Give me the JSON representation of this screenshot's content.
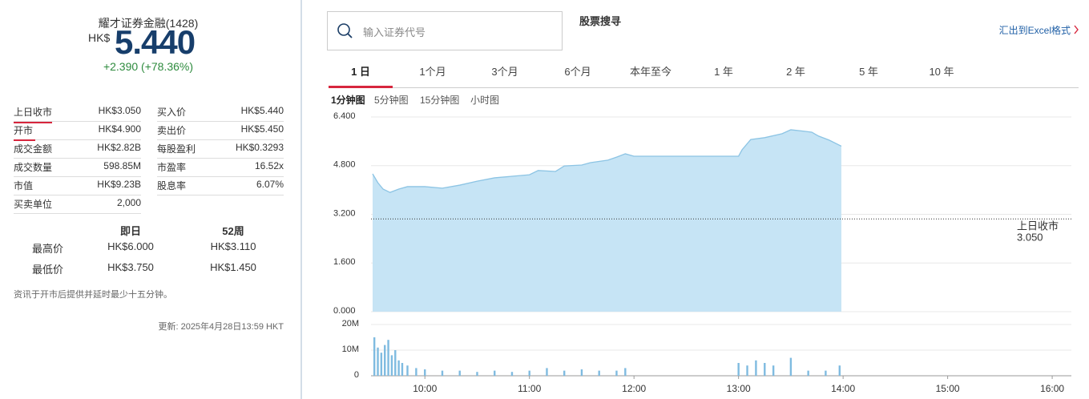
{
  "quote": {
    "name": "耀才证券金融(1428)",
    "currency": "HK$",
    "price": "5.440",
    "change": "+2.390 (+78.36%)"
  },
  "stats": [
    [
      "上日收市",
      "HK$3.050",
      "买入价",
      "HK$5.440"
    ],
    [
      "开市",
      "HK$4.900",
      "卖出价",
      "HK$5.450"
    ],
    [
      "成交金额",
      "HK$2.82B",
      "每股盈利",
      "HK$0.3293"
    ],
    [
      "成交数量",
      "598.85M",
      "市盈率",
      "16.52x"
    ],
    [
      "市值",
      "HK$9.23B",
      "股息率",
      "6.07%"
    ],
    [
      "买卖单位",
      "2,000"
    ]
  ],
  "range": {
    "headers": [
      "即日",
      "52周"
    ],
    "rows": [
      [
        "最高价",
        "HK$6.000",
        "HK$3.110"
      ],
      [
        "最低价",
        "HK$3.750",
        "HK$1.450"
      ]
    ]
  },
  "note": "资讯于开市后提供并延时最少十五分钟。",
  "updated": "更新: 2025年4月28日13:59 HKT",
  "search": {
    "placeholder": "输入证券代号",
    "title": "股票搜寻"
  },
  "export": "汇出到Excel格式",
  "tabs": [
    "1 日",
    "1个月",
    "3个月",
    "6个月",
    "本年至今",
    "1 年",
    "2 年",
    "5 年",
    "10 年"
  ],
  "subtabs": [
    "1分钟图",
    "5分钟图",
    "15分钟图",
    "小时图"
  ],
  "chart": {
    "type": "area",
    "x": [
      "09:30",
      "09:33",
      "09:36",
      "09:40",
      "09:45",
      "09:50",
      "10:00",
      "10:10",
      "10:20",
      "10:30",
      "10:40",
      "10:50",
      "11:00",
      "11:05",
      "11:15",
      "11:20",
      "11:30",
      "11:35",
      "11:45",
      "11:50",
      "11:55",
      "12:00",
      "13:00",
      "13:02",
      "13:07",
      "13:15",
      "13:25",
      "13:30",
      "13:38",
      "13:42",
      "13:46",
      "13:52",
      "13:59"
    ],
    "values": [
      4.53,
      4.24,
      4.03,
      3.92,
      4.03,
      4.11,
      4.11,
      4.06,
      4.16,
      4.29,
      4.4,
      4.45,
      4.5,
      4.64,
      4.61,
      4.79,
      4.82,
      4.9,
      4.98,
      5.08,
      5.19,
      5.11,
      5.11,
      5.32,
      5.66,
      5.72,
      5.85,
      5.98,
      5.93,
      5.9,
      5.77,
      5.64,
      5.44
    ],
    "color": "#c6e4f5",
    "line_color": "#8cc4e4",
    "ylim": [
      0,
      6.4
    ],
    "yticks": [
      {
        "value": 0,
        "label": "0.000"
      },
      {
        "value": 1.6,
        "label": "1.600"
      },
      {
        "value": 3.2,
        "label": "3.200"
      },
      {
        "value": 4.8,
        "label": "4.800"
      },
      {
        "value": 6.4,
        "label": "6.400"
      }
    ],
    "xlim": [
      "09:30",
      "16:11"
    ],
    "xticks": [
      "10:00",
      "11:00",
      "12:00",
      "13:00",
      "14:00",
      "15:00",
      "16:00"
    ],
    "grid": true,
    "reference": {
      "name": "上日收市",
      "value": 3.05,
      "label": "3.050"
    },
    "volume": {
      "x": [
        "09:31",
        "09:33",
        "09:35",
        "09:37",
        "09:39",
        "09:41",
        "09:43",
        "09:45",
        "09:47",
        "09:50",
        "09:55",
        "10:00",
        "10:10",
        "10:20",
        "10:30",
        "10:40",
        "10:50",
        "11:00",
        "11:10",
        "11:20",
        "11:30",
        "11:40",
        "11:50",
        "11:55",
        "13:00",
        "13:05",
        "13:10",
        "13:15",
        "13:20",
        "13:30",
        "13:40",
        "13:50",
        "13:58"
      ],
      "values": [
        15,
        11,
        9,
        12,
        14,
        8,
        10,
        6,
        5,
        4,
        3,
        2.5,
        2,
        2,
        1.5,
        2,
        1.5,
        2,
        3,
        2,
        2.5,
        2,
        2,
        3,
        5,
        4,
        6,
        5,
        4,
        7,
        2,
        2,
        4
      ],
      "color": "#7fbbe0",
      "ylim": [
        0,
        20
      ],
      "yticks": [
        {
          "value": 0,
          "label": "0"
        },
        {
          "value": 10,
          "label": "10M"
        },
        {
          "value": 20,
          "label": "20M"
        }
      ]
    }
  }
}
